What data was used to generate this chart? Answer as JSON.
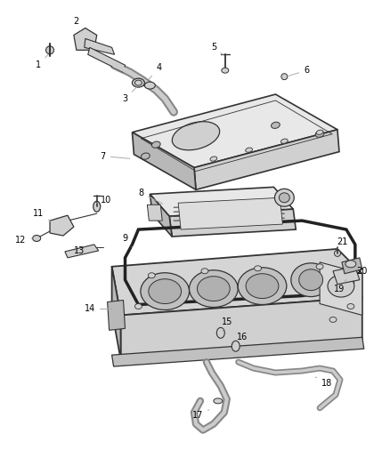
{
  "bg_color": "#ffffff",
  "fig_width": 4.38,
  "fig_height": 5.33,
  "dpi": 100,
  "line_color": "#aaaaaa",
  "label_color": "#000000",
  "label_fontsize": 7.0,
  "gc": "#555555",
  "gc_dark": "#333333",
  "fill_light": "#e8e8e8",
  "fill_mid": "#d0d0d0",
  "fill_dark": "#b8b8b8",
  "fill_vdark": "#999999"
}
